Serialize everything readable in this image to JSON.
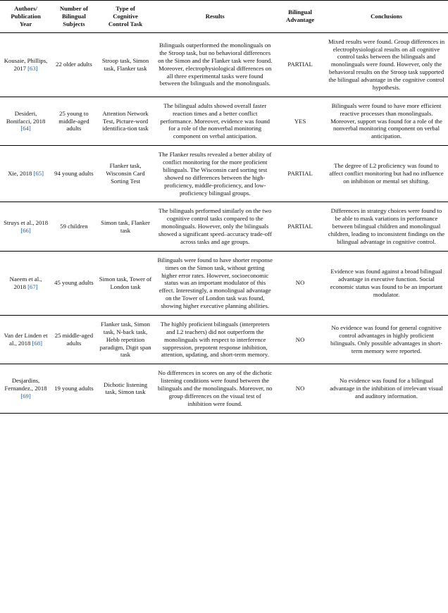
{
  "headers": {
    "authors": "Authors/\nPublication\nYear",
    "subjects": "Number of\nBilingual\nSubjects",
    "task": "Type of\nCognitive\nControl Task",
    "results": "Results",
    "advantage": "Bilingual\nAdvantage",
    "conclusions": "Conclusions"
  },
  "rows": [
    {
      "authors": "Kousaie, Phillips, 2017",
      "ref": "[63]",
      "subjects": "22 older adults",
      "task": "Stroop task, Simon task, Flanker task",
      "results": "Bilinguals outperformed the monolinguals on the Stroop task, but no behavioral differences on the Simon and the Flanker task were found. Moreover, electrophysiological differences on all three experimental tasks were found between the bilinguals and the monolinguals.",
      "advantage": "PARTIAL",
      "conclusions": "Mixed results were found. Group differences in electrophysiological results on all cognitive control tasks between the bilinguals and monolinguals were found. However, only the behavioral results on the Stroop task supported the bilingual advantage in the cognitive control hypothesis."
    },
    {
      "authors": "Desideri, Bonifacci, 2018",
      "ref": "[64]",
      "subjects": "25 young to middle-aged adults",
      "task": "Attention Network Test, Picture-word identifica-tion task",
      "results": "The bilingual adults showed overall faster reaction times and a better conflict performance. Moreover, evidence was found for a role of the nonverbal monitoring component on verbal anticipation.",
      "advantage": "YES",
      "conclusions": "Bilinguals were found to have more efficient reactive processes than monolinguals. Moreover, support was found for a role of the nonverbal monitoring component on verbal anticipation."
    },
    {
      "authors": "Xie, 2018",
      "ref": "[65]",
      "subjects": "94 young adults",
      "task": "Flanker task, Wisconsin Card Sorting Test",
      "results": "The Flanker results revealed a better ability of conflict monitoring for the more proficient bilinguals. The Wisconsin card sorting test showed no differences between the high-proficiency, middle-proficiency, and low-proficiency bilingual groups.",
      "advantage": "PARTIAL",
      "conclusions": "The degree of L2 proficiency was found to affect conflict monitoring but had no influence on inhibition or mental set shifting."
    },
    {
      "authors": "Struys et al., 2018",
      "ref": "[66]",
      "subjects": "59 children",
      "task": "Simon task, Flanker task",
      "results": "The bilinguals performed similarly on the two cognitive control tasks compared to the monolinguals. However, only the bilinguals showed a significant speed–accuracy trade-off across tasks and age groups.",
      "advantage": "PARTIAL",
      "conclusions": "Differences in strategy choices were found to be able to mask variations in performance between bilingual children and monolingual children, leading to inconsistent findings on the bilingual advantage in cognitive control."
    },
    {
      "authors": "Naeem et al., 2018",
      "ref": "[67]",
      "subjects": "45 young adults",
      "task": "Simon task, Tower of London task",
      "results": "Bilinguals were found to have shorter response times on the Simon task, without getting higher error rates. However, socioeconomic status was an important modulator of this effect. Interestingly, a monolingual advantage on the Tower of London task was found, showing higher executive planning abilities.",
      "advantage": "NO",
      "conclusions": "Evidence was found against a broad bilingual advantage in executive function. Social economic status was found to be an important modulator."
    },
    {
      "authors": "Van der Linden et al., 2018",
      "ref": "[68]",
      "subjects": "25 middle-aged adults",
      "task": "Flanker task, Simon task, N-back task, Hebb repetition paradigm, Digit span task",
      "results": "The highly proficient bilinguals (interpreters and L2 teachers) did not outperform the monolinguals with respect to interference suppression, prepotent response inhibition, attention, updating, and short-term memory.",
      "advantage": "NO",
      "conclusions": "No evidence was found for general cognitive control advantages in highly proficient bilinguals. Only possible advantages in short-term memory were reported."
    },
    {
      "authors": "Desjardins, Fernandez., 2018",
      "ref": "[69]",
      "subjects": "19 young adults",
      "task": "Dichotic listening task, Simon task",
      "results": "No differences in scores on any of the dichotic listening conditions were found between the bilinguals and the monolinguals. Moreover, no group differences on the visual test of inhibition were found.",
      "advantage": "NO",
      "conclusions": "No evidence was found for a bilingual advantage in the inhibition of irrelevant visual and auditory information."
    }
  ]
}
